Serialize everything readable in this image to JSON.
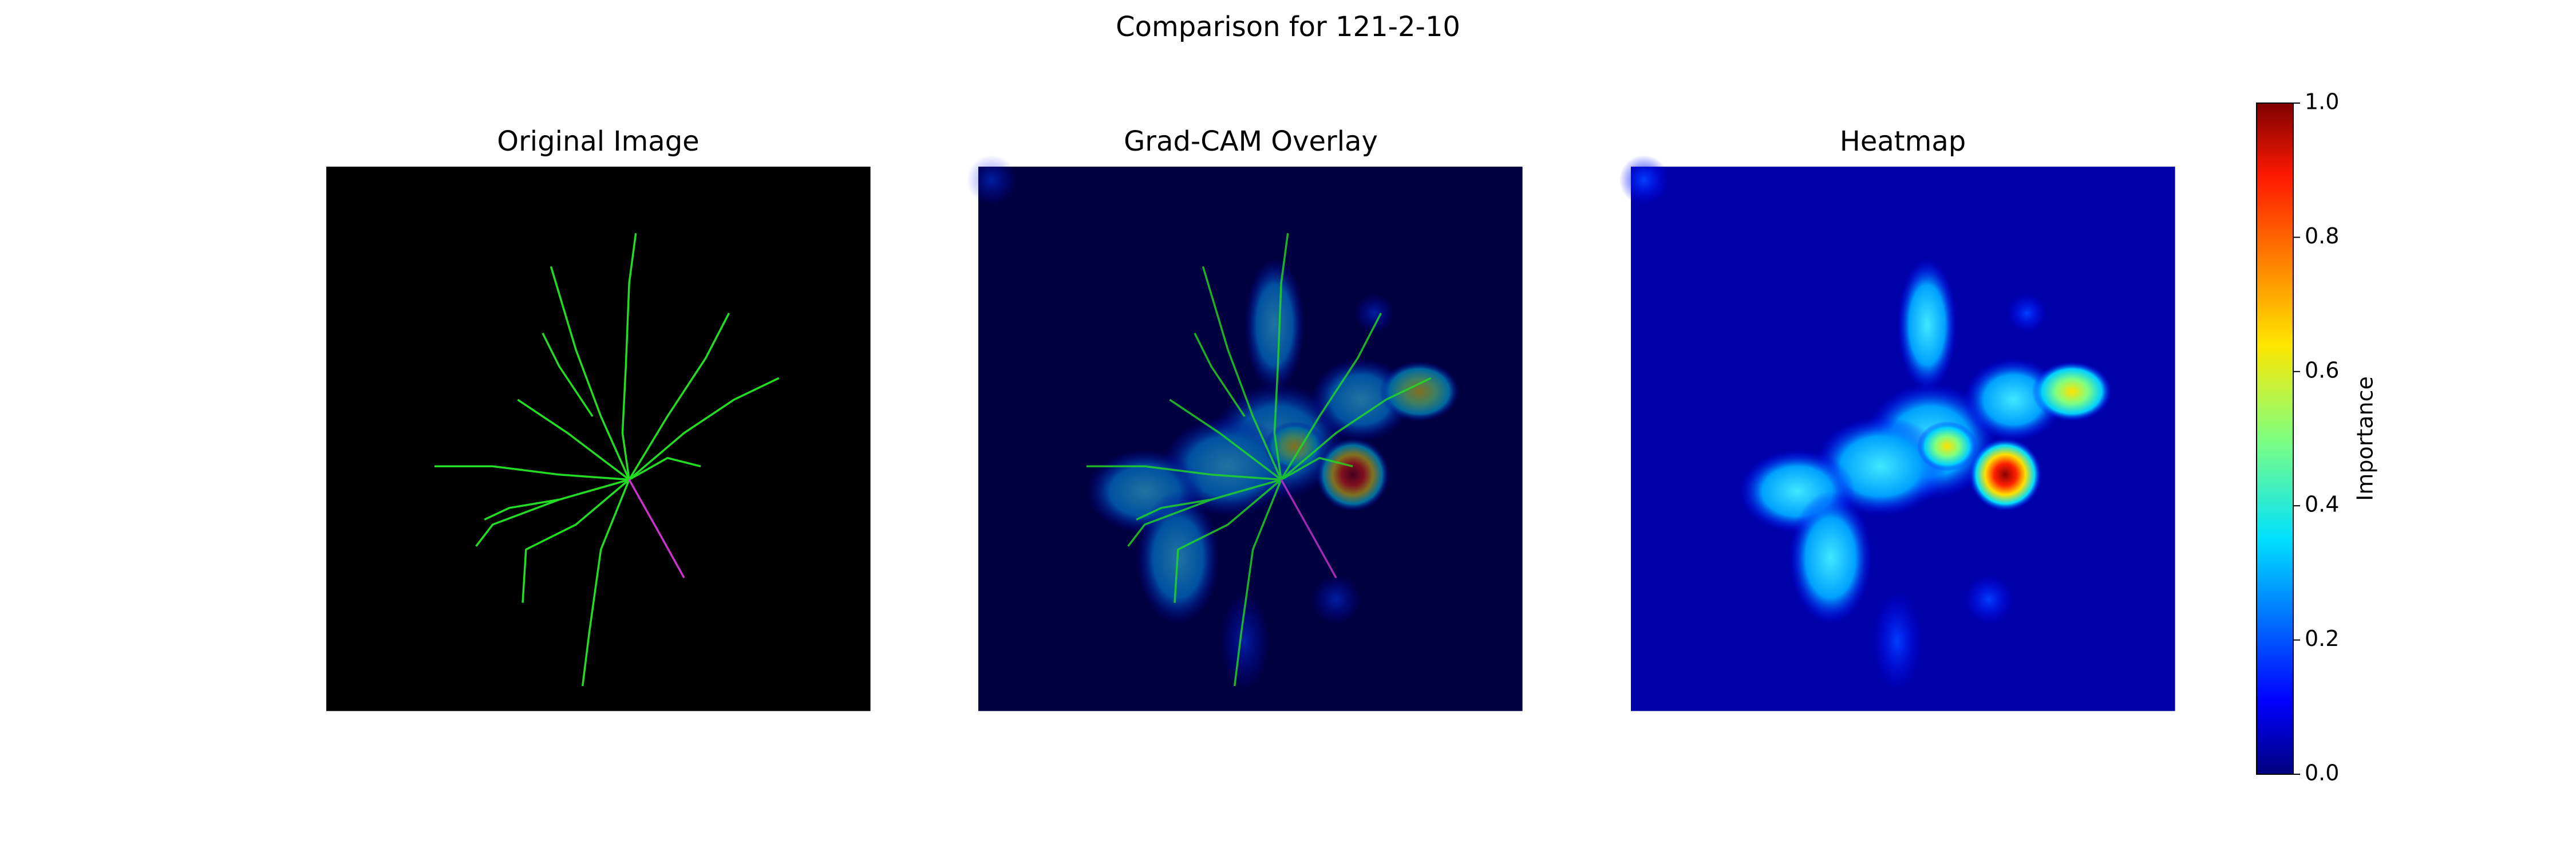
{
  "chart_data": {
    "type": "image-comparison",
    "title": "Comparison for 121-2-10",
    "panels": [
      {
        "title": "Original Image"
      },
      {
        "title": "Grad-CAM Overlay"
      },
      {
        "title": "Heatmap"
      }
    ],
    "colorbar": {
      "label": "Importance",
      "lim": [
        0,
        1
      ],
      "ticks": [
        {
          "value": 0,
          "label": "0.0"
        },
        {
          "value": 0.2,
          "label": "0.2"
        },
        {
          "value": 0.4,
          "label": "0.4"
        },
        {
          "value": 0.6,
          "label": "0.6"
        },
        {
          "value": 0.8,
          "label": "0.8"
        },
        {
          "value": 1,
          "label": "1.0"
        }
      ]
    }
  }
}
